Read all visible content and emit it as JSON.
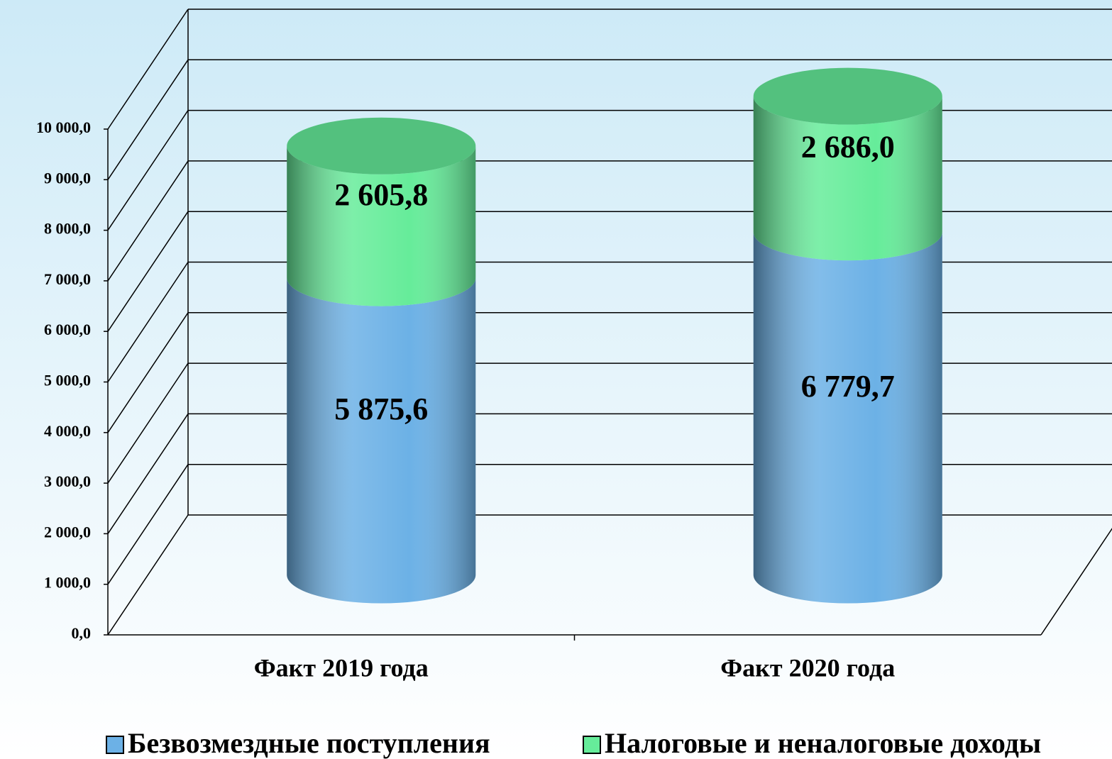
{
  "chart_data": {
    "type": "bar",
    "stacked": true,
    "categories": [
      "Факт 2019 года",
      "Факт 2020 года"
    ],
    "series": [
      {
        "name": "Безвозмездные поступления",
        "color": "#6cb1e6",
        "values": [
          5875.6,
          6779.7
        ],
        "value_labels": [
          "5 875,6",
          "6 779,7"
        ]
      },
      {
        "name": "Налоговые и неналоговые доходы",
        "color": "#66ec9a",
        "values": [
          2605.8,
          2686.0
        ],
        "value_labels": [
          "2 605,8",
          "2 686,0"
        ]
      }
    ],
    "ylim": [
      0,
      10000
    ],
    "yticks": [
      {
        "value": 0,
        "label": "0,0"
      },
      {
        "value": 1000,
        "label": "1 000,0"
      },
      {
        "value": 2000,
        "label": "2 000,0"
      },
      {
        "value": 3000,
        "label": "3 000,0"
      },
      {
        "value": 4000,
        "label": "4 000,0"
      },
      {
        "value": 5000,
        "label": "5 000,0"
      },
      {
        "value": 6000,
        "label": "6 000,0"
      },
      {
        "value": 7000,
        "label": "7 000,0"
      },
      {
        "value": 8000,
        "label": "8 000,0"
      },
      {
        "value": 9000,
        "label": "9 000,0"
      },
      {
        "value": 10000,
        "label": "10 000,0"
      }
    ],
    "grid": true,
    "legend": "bottom"
  }
}
